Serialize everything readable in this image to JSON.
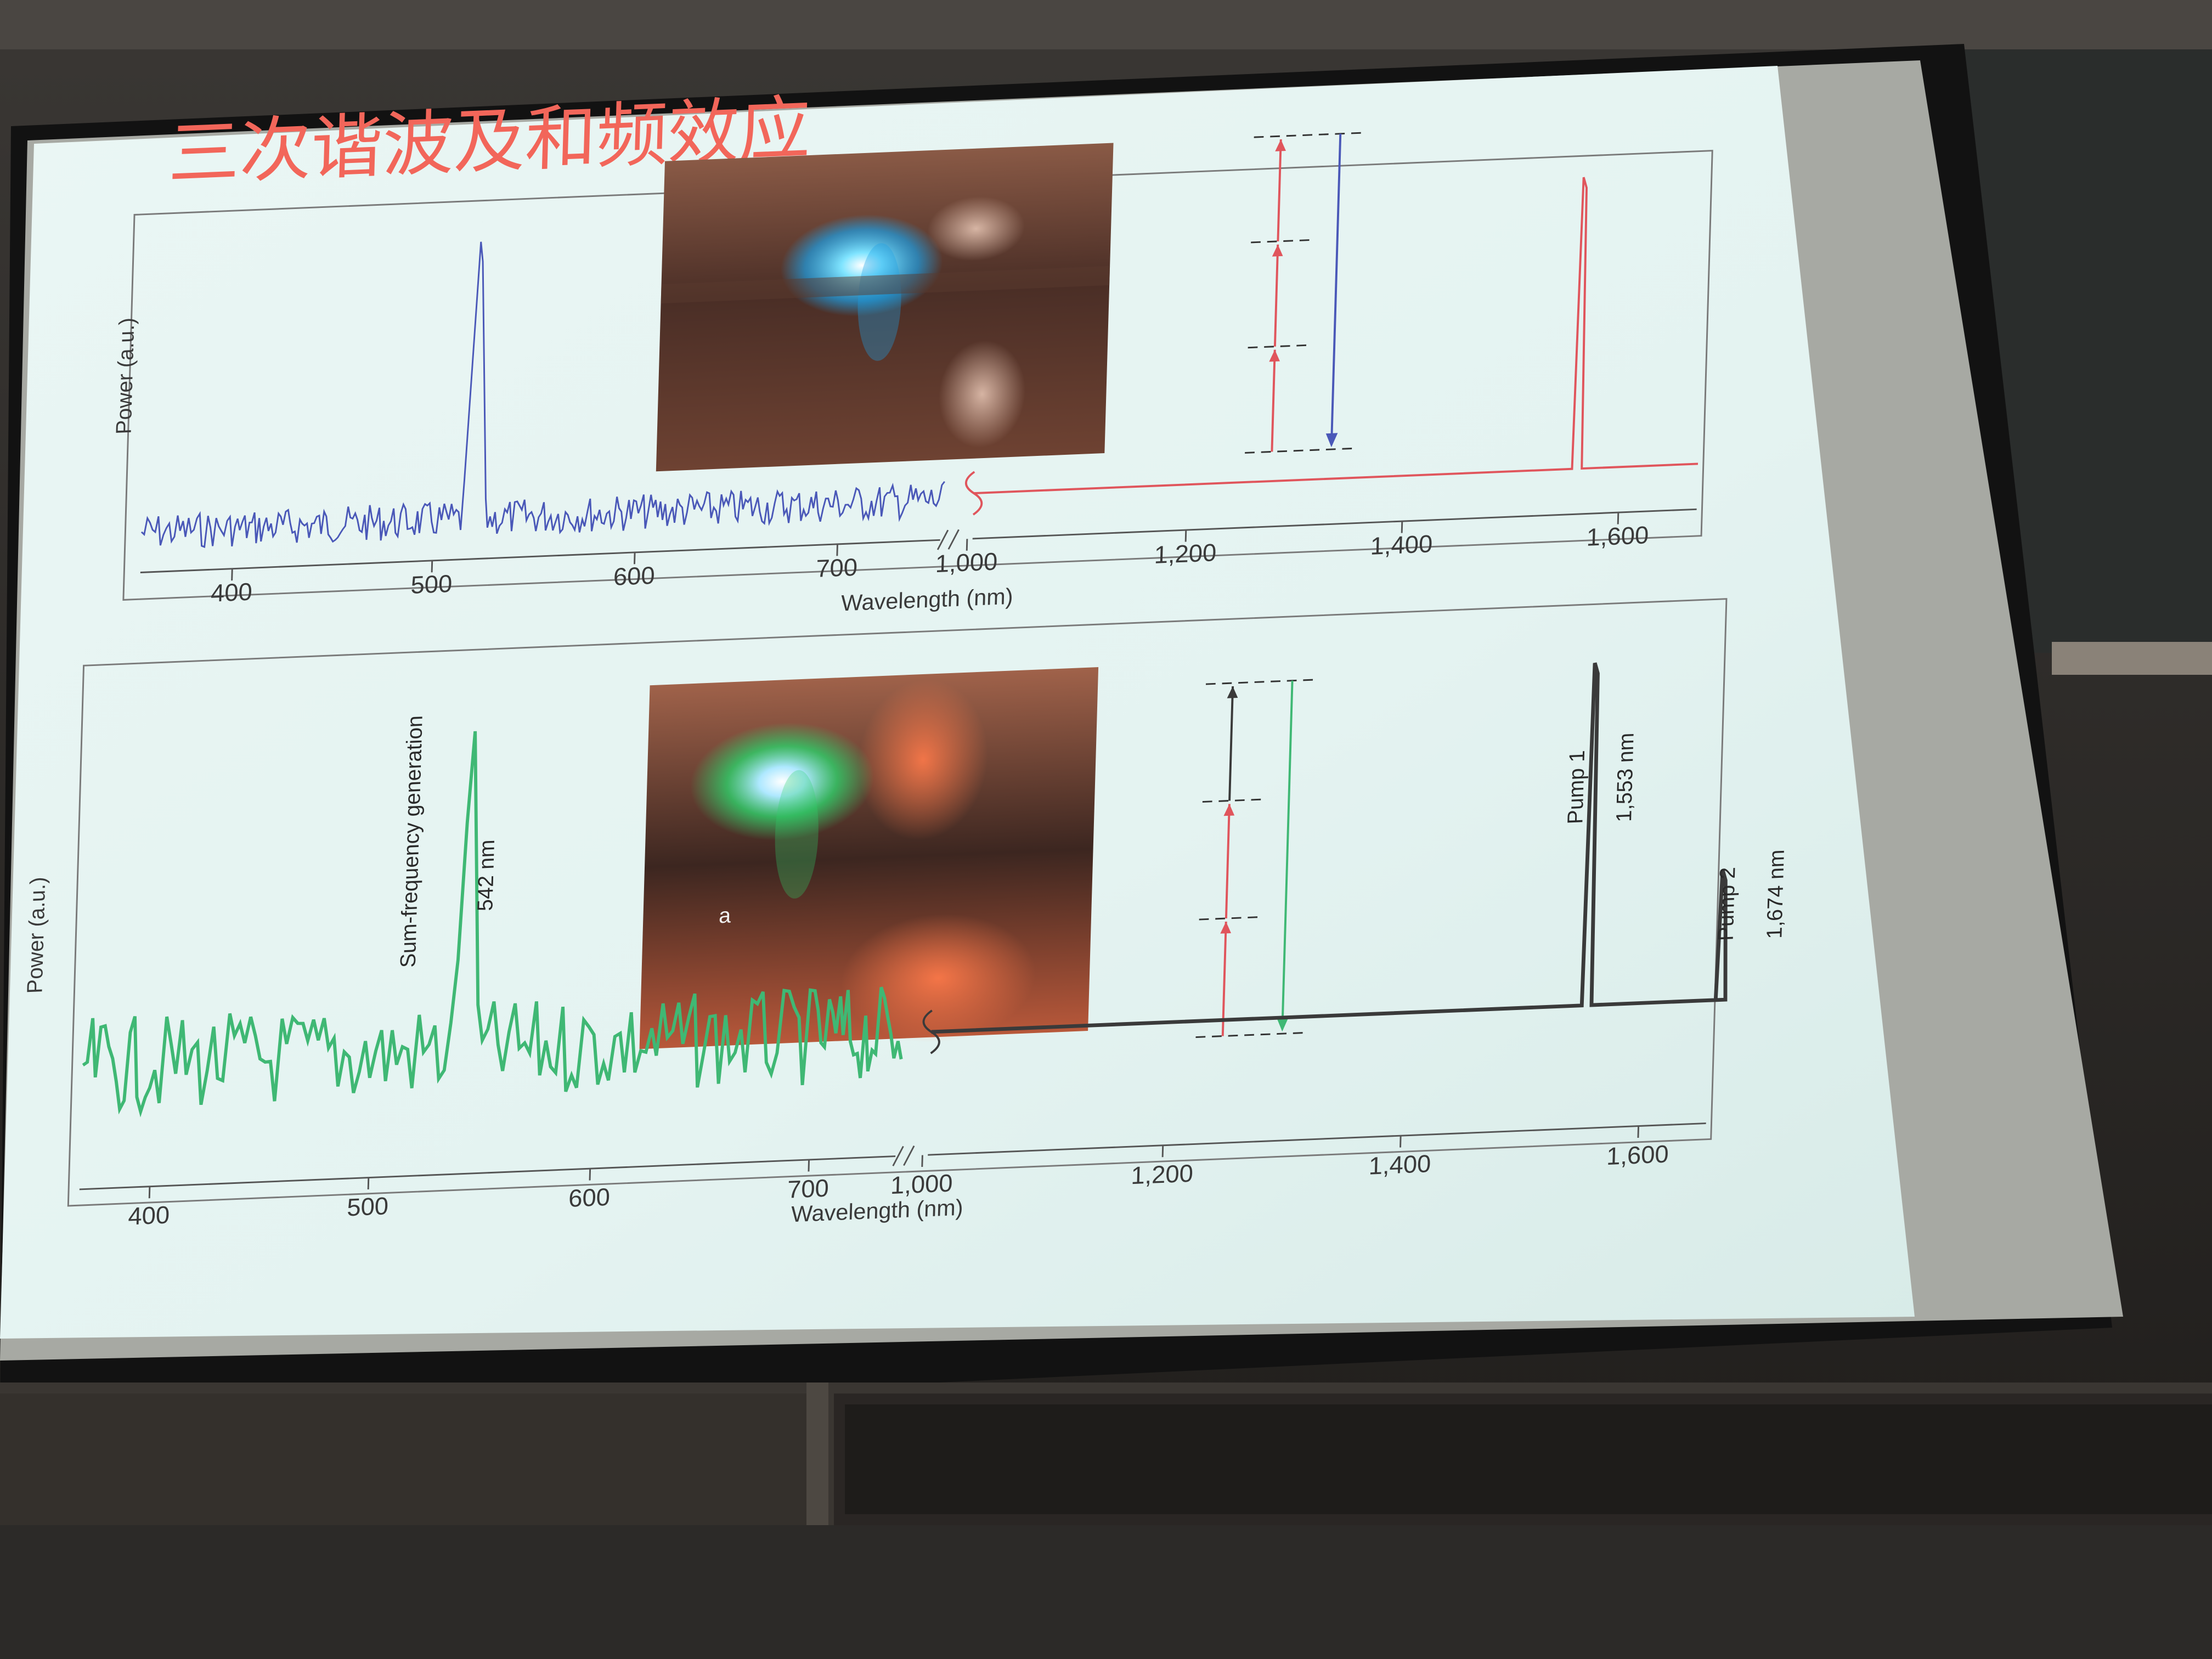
{
  "slide": {
    "title": "三次谐波及和频效应"
  },
  "chart_data": [
    {
      "type": "line",
      "xlabel": "Wavelength (nm)",
      "ylabel": "Power (a.u.)",
      "x_ticks": [
        400,
        500,
        600,
        700,
        1000,
        1200,
        1400,
        1600
      ],
      "x_tick_labels": [
        "400",
        "500",
        "600",
        "700",
        "1,000",
        "1,200",
        "1,400",
        "1,600"
      ],
      "axis_break": [
        750,
        1000
      ],
      "series": [
        {
          "color": "#4a58b8",
          "peaks": [
            {
              "x": 520,
              "y": 1.0
            }
          ],
          "x_range": [
            360,
            750
          ]
        },
        {
          "color": "#e0555c",
          "peaks": [
            {
              "x": 1560,
              "y": 1.0
            }
          ],
          "x_range": [
            1000,
            1700
          ]
        }
      ],
      "energy_diagram": {
        "up_arrows_color": "#e0555c",
        "down_arrow_color": "#4a58b8",
        "up_steps": 3
      }
    },
    {
      "type": "line",
      "xlabel": "Wavelength (nm)",
      "ylabel": "Power (a.u.)",
      "x_ticks": [
        400,
        500,
        600,
        700,
        1000,
        1200,
        1400,
        1600
      ],
      "x_tick_labels": [
        "400",
        "500",
        "600",
        "700",
        "1,000",
        "1,200",
        "1,400",
        "1,600"
      ],
      "axis_break": [
        750,
        1000
      ],
      "series": [
        {
          "color": "#3fb874",
          "peaks": [
            {
              "x": 542,
              "y": 1.0
            }
          ],
          "x_range": [
            360,
            760
          ]
        },
        {
          "color": "#3a3a3a",
          "peaks": [
            {
              "x": 1553,
              "y": 1.0
            },
            {
              "x": 1674,
              "y": 0.38
            }
          ],
          "x_range": [
            1000,
            1700
          ]
        }
      ],
      "annotations": [
        {
          "text": "Sum-frequency generation"
        },
        {
          "text": "542 nm"
        },
        {
          "text": "Pump 1"
        },
        {
          "text": "1,553 nm"
        },
        {
          "text": "Pump 2"
        },
        {
          "text": "1,674 nm"
        },
        {
          "text": "a"
        }
      ],
      "energy_diagram": {
        "up_arrows_colors": [
          "#3a3a3a",
          "#e0555c",
          "#e0555c"
        ],
        "down_arrow_color": "#3fb874",
        "up_steps": 3
      }
    }
  ]
}
